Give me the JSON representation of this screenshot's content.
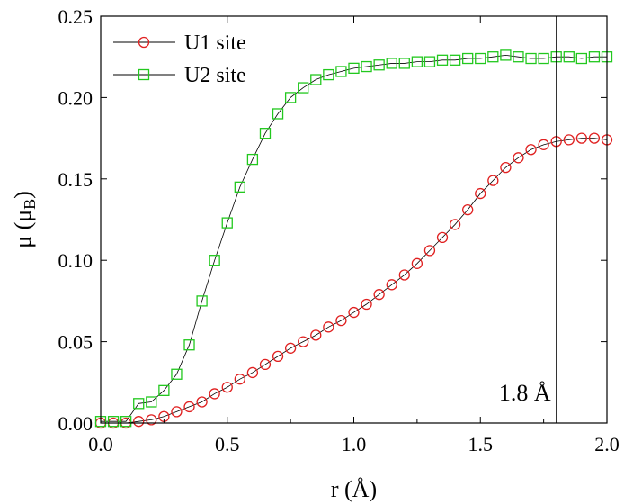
{
  "chart_data": {
    "type": "scatter",
    "xlabel": "r (Å)",
    "ylabel_main": "μ (μ",
    "ylabel_sub": "B",
    "ylabel_close": ")",
    "xlim": [
      0.0,
      2.0
    ],
    "ylim": [
      0.0,
      0.25
    ],
    "x_ticks": [
      "0.0",
      "0.5",
      "1.0",
      "1.5",
      "2.0"
    ],
    "y_ticks": [
      "0.00",
      "0.05",
      "0.10",
      "0.15",
      "0.20",
      "0.25"
    ],
    "x_tick_values": [
      0.0,
      0.5,
      1.0,
      1.5,
      2.0
    ],
    "y_tick_values": [
      0.0,
      0.05,
      0.1,
      0.15,
      0.2,
      0.25
    ],
    "legend_position": "top-left",
    "annotation": {
      "text": "1.8 Å",
      "vline_x": 1.8
    },
    "series": [
      {
        "name": "U1 site",
        "marker": "circle",
        "color": "#e02020",
        "x": [
          0.0,
          0.05,
          0.1,
          0.15,
          0.2,
          0.25,
          0.3,
          0.35,
          0.4,
          0.45,
          0.5,
          0.55,
          0.6,
          0.65,
          0.7,
          0.75,
          0.8,
          0.85,
          0.9,
          0.95,
          1.0,
          1.05,
          1.1,
          1.15,
          1.2,
          1.25,
          1.3,
          1.35,
          1.4,
          1.45,
          1.5,
          1.55,
          1.6,
          1.65,
          1.7,
          1.75,
          1.8,
          1.85,
          1.9,
          1.95,
          2.0
        ],
        "y": [
          0.0,
          0.0,
          0.0,
          0.001,
          0.002,
          0.004,
          0.007,
          0.01,
          0.013,
          0.018,
          0.022,
          0.027,
          0.031,
          0.036,
          0.041,
          0.046,
          0.05,
          0.054,
          0.059,
          0.063,
          0.068,
          0.073,
          0.079,
          0.085,
          0.091,
          0.098,
          0.106,
          0.114,
          0.122,
          0.131,
          0.141,
          0.149,
          0.157,
          0.163,
          0.168,
          0.171,
          0.173,
          0.174,
          0.175,
          0.175,
          0.174
        ]
      },
      {
        "name": "U2 site",
        "marker": "square",
        "color": "#22c81e",
        "x": [
          0.0,
          0.05,
          0.1,
          0.15,
          0.2,
          0.25,
          0.3,
          0.35,
          0.4,
          0.45,
          0.5,
          0.55,
          0.6,
          0.65,
          0.7,
          0.75,
          0.8,
          0.85,
          0.9,
          0.95,
          1.0,
          1.05,
          1.1,
          1.15,
          1.2,
          1.25,
          1.3,
          1.35,
          1.4,
          1.45,
          1.5,
          1.55,
          1.6,
          1.65,
          1.7,
          1.75,
          1.8,
          1.85,
          1.9,
          1.95,
          2.0
        ],
        "y": [
          0.001,
          0.001,
          0.001,
          0.012,
          0.013,
          0.02,
          0.03,
          0.048,
          0.075,
          0.1,
          0.123,
          0.145,
          0.162,
          0.178,
          0.19,
          0.2,
          0.206,
          0.211,
          0.214,
          0.216,
          0.218,
          0.219,
          0.22,
          0.221,
          0.221,
          0.222,
          0.222,
          0.223,
          0.223,
          0.224,
          0.224,
          0.225,
          0.226,
          0.225,
          0.224,
          0.224,
          0.225,
          0.225,
          0.224,
          0.225,
          0.225
        ]
      }
    ]
  }
}
